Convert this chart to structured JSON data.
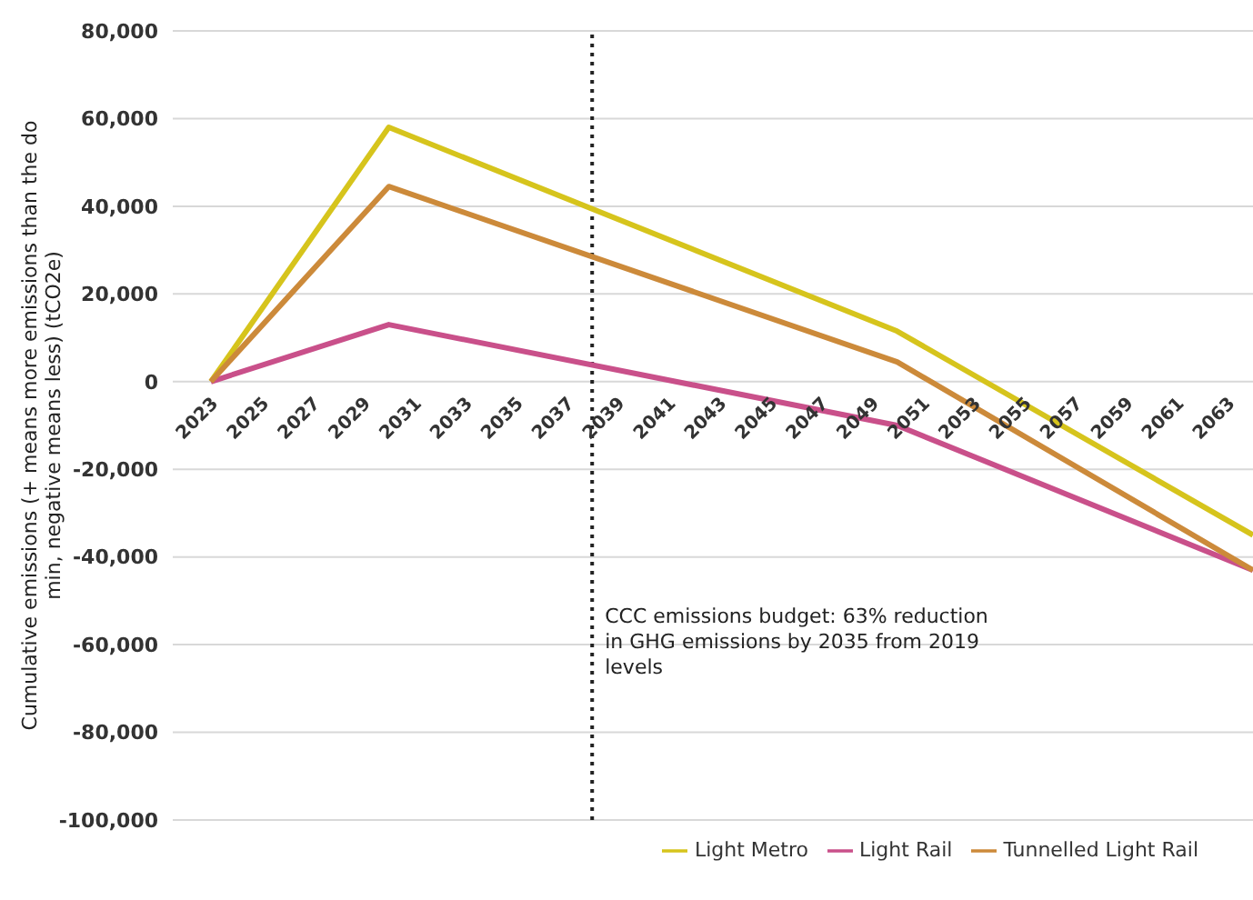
{
  "chart_data": {
    "type": "line",
    "ylabel": "Cumulative emissions (+ means more emissions than the do min, negative means less) (tCO2e)",
    "x": [
      2023,
      2030,
      2050,
      2064
    ],
    "series": [
      {
        "name": "Light Metro",
        "color": "#d6c41c",
        "values": [
          0,
          58000,
          11500,
          -35000
        ]
      },
      {
        "name": "Light Rail",
        "color": "#c9508a",
        "values": [
          0,
          13000,
          -10000,
          -43000
        ]
      },
      {
        "name": "Tunnelled Light Rail",
        "color": "#cc8a3a",
        "values": [
          0,
          44500,
          4500,
          -43000
        ]
      }
    ],
    "xlim": [
      2021.5,
      2064
    ],
    "xticks": [
      2023,
      2025,
      2027,
      2029,
      2031,
      2033,
      2035,
      2037,
      2039,
      2041,
      2043,
      2045,
      2047,
      2049,
      2051,
      2053,
      2055,
      2057,
      2059,
      2061,
      2063
    ],
    "ylim": [
      -100000,
      80000
    ],
    "yticks": [
      {
        "value": -100000,
        "label": "-100,000"
      },
      {
        "value": -80000,
        "label": "-80,000"
      },
      {
        "value": -60000,
        "label": "-60,000"
      },
      {
        "value": -40000,
        "label": "-40,000"
      },
      {
        "value": -20000,
        "label": "-20,000"
      },
      0,
      {
        "value": 20000,
        "label": "20,000"
      },
      {
        "value": 40000,
        "label": "40,000"
      },
      {
        "value": 60000,
        "label": "60,000"
      },
      {
        "value": 80000,
        "label": "80,000"
      }
    ],
    "ref_lines": [
      {
        "axis": "x",
        "value": 2038,
        "color": "#222222",
        "line_style": "dotted"
      }
    ],
    "annotations": [
      "CCC emissions budget: 63% reduction in GHG emissions by 2035 from 2019 levels"
    ],
    "grid": "y",
    "legend": "bottom right",
    "marker": "none",
    "line_style": "solid"
  }
}
